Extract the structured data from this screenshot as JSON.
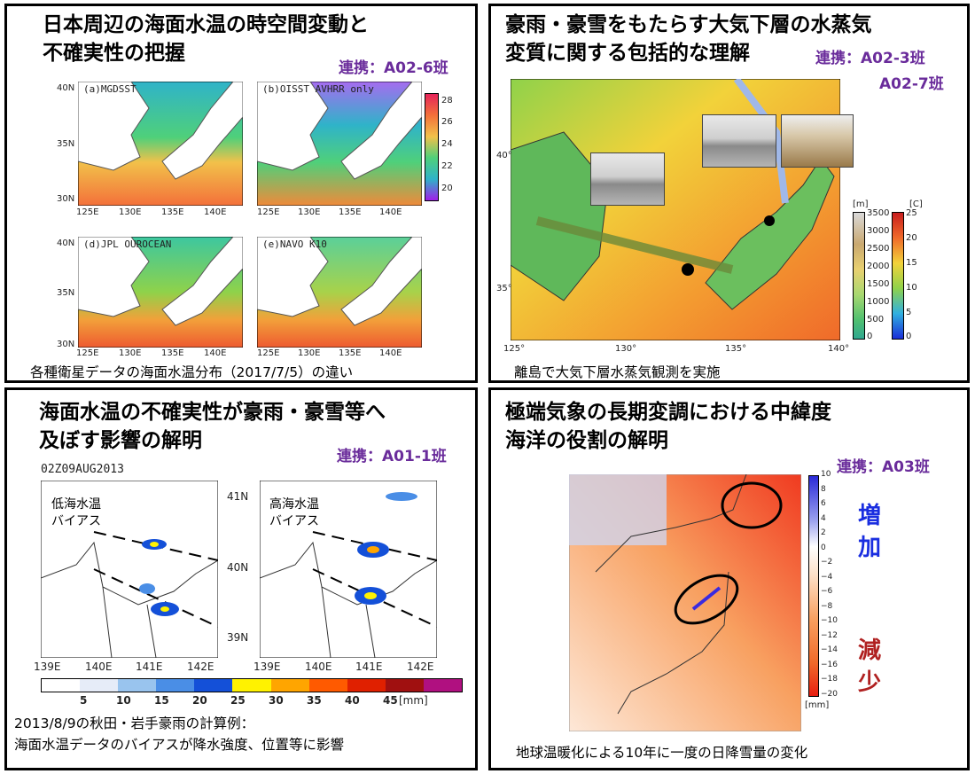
{
  "panel1": {
    "title_line1": "日本周辺の海面水温の時空間変動と",
    "title_line2": "不確実性の把握",
    "collab": "連携：A02-6班",
    "maps": [
      {
        "label": "(a)MGDSST"
      },
      {
        "label": "(b)OISST AVHRR only"
      },
      {
        "label": "(d)JPL OUROCEAN"
      },
      {
        "label": "(e)NAVO K10"
      }
    ],
    "lat_ticks": [
      "40N",
      "35N",
      "30N"
    ],
    "lon_ticks": [
      "125E",
      "130E",
      "135E",
      "140E"
    ],
    "colorbar": [
      "28",
      "26",
      "24",
      "22",
      "20"
    ],
    "caption": "各種衛星データの海面水温分布（2017/7/5）の違い"
  },
  "panel2": {
    "title_line1": "豪雨・豪雪をもたらす大気下層の水蒸気",
    "title_line2": "変質に関する包括的な理解",
    "collab_line1": "連携：A02-3班",
    "collab_line2": "A02-7班",
    "lat_ticks": [
      "40°",
      "35°"
    ],
    "lon_ticks": [
      "125°",
      "130°",
      "135°",
      "140°"
    ],
    "unit_m": "[m]",
    "unit_c": "[C]",
    "elev_ticks": [
      "3500",
      "3000",
      "2500",
      "2000",
      "1500",
      "1000",
      "500",
      "0"
    ],
    "temp_ticks": [
      "25",
      "20",
      "15",
      "10",
      "5",
      "0"
    ],
    "caption": "離島で大気下層水蒸気観測を実施"
  },
  "panel3": {
    "title_line1": "海面水温の不確実性が豪雨・豪雪等へ",
    "title_line2": "及ぼす影響の解明",
    "collab": "連携：A01-1班",
    "time_label": "02Z09AUG2013",
    "left_label_line1": "低海水温",
    "left_label_line2": "バイアス",
    "right_label_line1": "高海水温",
    "right_label_line2": "バイアス",
    "lat_ticks": [
      "41N",
      "40N",
      "39N"
    ],
    "lon_ticks": [
      "139E",
      "140E",
      "141E",
      "142E",
      "139E",
      "140E",
      "141E",
      "142E"
    ],
    "colorbar_ticks": [
      "5",
      "10",
      "15",
      "20",
      "25",
      "30",
      "35",
      "40",
      "45"
    ],
    "colorbar_unit": "[mm]",
    "colorbar_colors": [
      "#ffffff",
      "#e6ecf8",
      "#99c4ee",
      "#4a8ee6",
      "#1450d8",
      "#fff200",
      "#ffa500",
      "#ff5a00",
      "#e02000",
      "#a01010",
      "#b01080"
    ],
    "caption_line1": "2013/8/9の秋田・岩手豪雨の計算例：",
    "caption_line2": "海面水温データのバイアスが降水強度、位置等に影響"
  },
  "panel4": {
    "title_line1": "極端気象の長期変調における中緯度",
    "title_line2": "海洋の役割の解明",
    "collab": "連携：A03班",
    "increase_line1": "増",
    "increase_line2": "加",
    "decrease_line1": "減",
    "decrease_line2": "少",
    "colorbar_ticks": [
      "10",
      "8",
      "6",
      "4",
      "2",
      "0",
      "−2",
      "−4",
      "−6",
      "−8",
      "−10",
      "−12",
      "−14",
      "−16",
      "−18",
      "−20"
    ],
    "colorbar_unit": "[mm]",
    "caption": "地球温暖化による10年に一度の日降雪量の変化"
  }
}
